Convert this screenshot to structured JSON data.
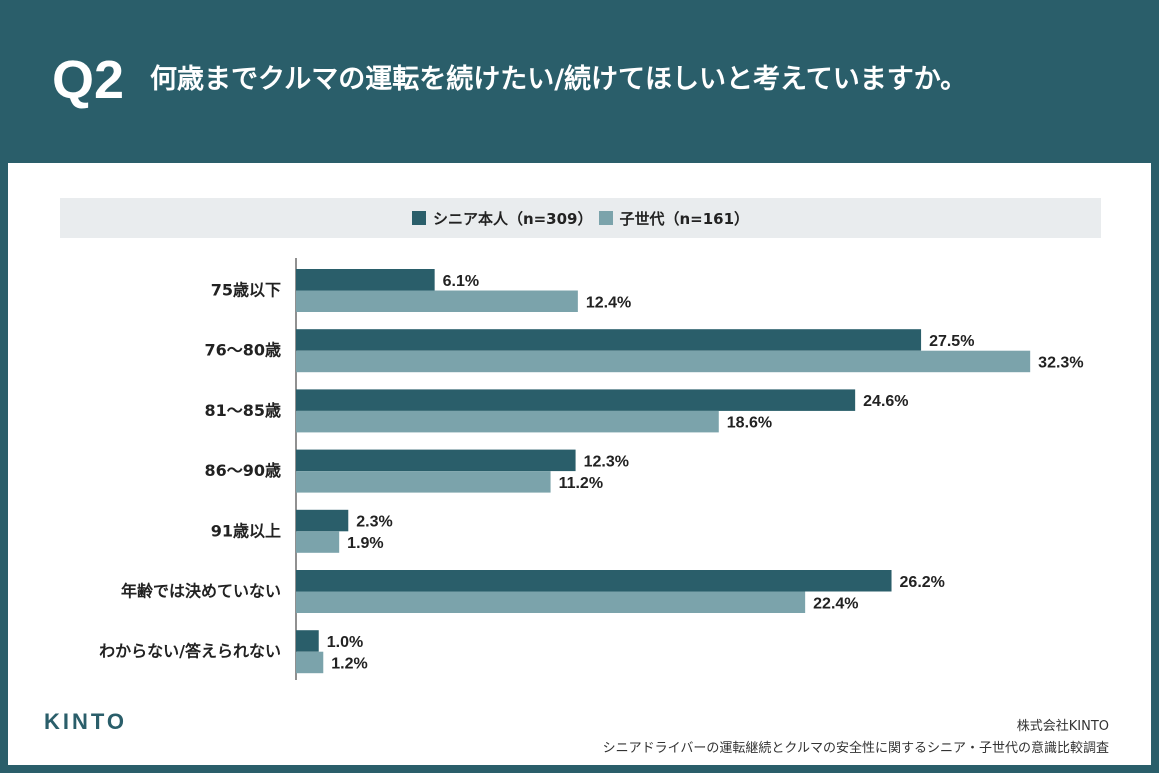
{
  "header": {
    "q_label": "Q2",
    "title": "何歳までクルマの運転を続けたい/続けてほしいと考えていますか。"
  },
  "colors": {
    "header_bg": "#2a5e6a",
    "series_1": "#2a5e6a",
    "series_2": "#7ba3ab",
    "legend_bg": "#e9ecee"
  },
  "chart_data": {
    "type": "bar",
    "orientation": "horizontal",
    "categories": [
      "75歳以下",
      "76〜80歳",
      "81〜85歳",
      "86〜90歳",
      "91歳以上",
      "年齢では決めていない",
      "わからない/答えられない"
    ],
    "series": [
      {
        "name": "シニア本人（n=309）",
        "values": [
          6.1,
          27.5,
          24.6,
          12.3,
          2.3,
          26.2,
          1.0
        ],
        "labels": [
          "6.1%",
          "27.5%",
          "24.6%",
          "12.3%",
          "2.3%",
          "26.2%",
          "1.0%"
        ]
      },
      {
        "name": "子世代（n=161）",
        "values": [
          12.4,
          32.3,
          18.6,
          11.2,
          1.9,
          22.4,
          1.2
        ],
        "labels": [
          "12.4%",
          "32.3%",
          "18.6%",
          "11.2%",
          "1.9%",
          "22.4%",
          "1.2%"
        ]
      }
    ],
    "xlim": [
      0,
      35
    ],
    "legend_position": "top-center",
    "grid": false
  },
  "footer": {
    "logo": "KINTO",
    "company": "株式会社KINTO",
    "survey": "シニアドライバーの運転継続とクルマの安全性に関するシニア・子世代の意識比較調査"
  }
}
